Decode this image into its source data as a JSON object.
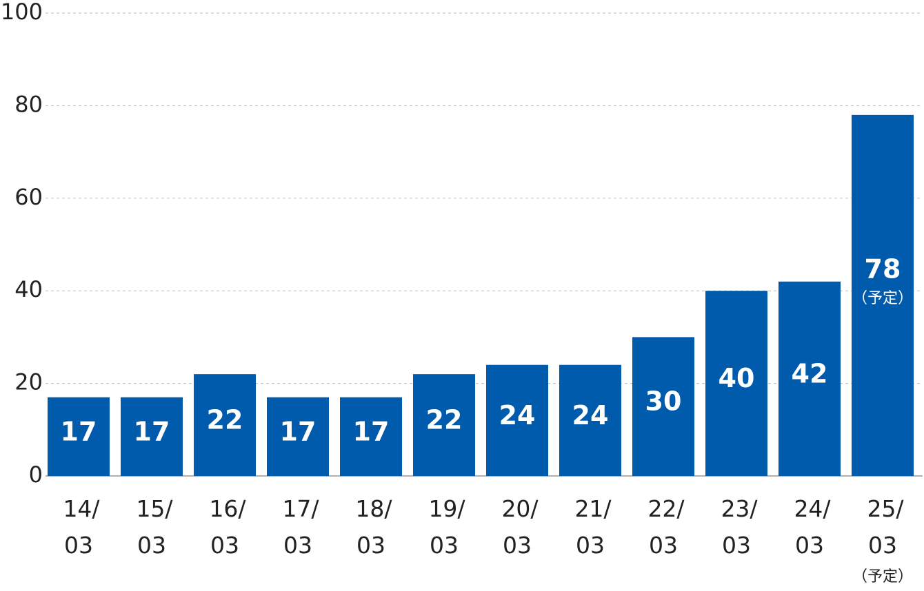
{
  "chart_data": {
    "type": "bar",
    "categories": [
      "14/03",
      "15/03",
      "16/03",
      "17/03",
      "18/03",
      "19/03",
      "20/03",
      "21/03",
      "22/03",
      "23/03",
      "24/03",
      "25/03"
    ],
    "values": [
      17,
      17,
      22,
      17,
      17,
      22,
      24,
      24,
      30,
      40,
      42,
      78
    ],
    "color": "#005bac",
    "ylim": [
      0,
      100
    ],
    "yticks": [
      0,
      20,
      40,
      60,
      80,
      100
    ],
    "grid": true,
    "last_category_note": "（予定）",
    "last_value_note": "（予定）"
  }
}
